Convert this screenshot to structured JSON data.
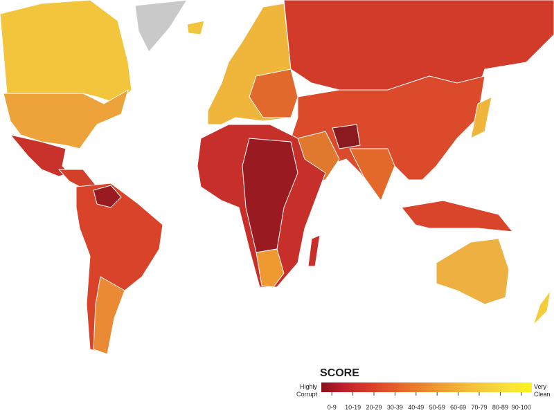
{
  "legend": {
    "title": "SCORE",
    "low_label": [
      "Highly",
      "Corrupt"
    ],
    "high_label": [
      "Very",
      "Clean"
    ],
    "ranges": [
      "0-9",
      "10-19",
      "20-29",
      "30-39",
      "40-49",
      "50-59",
      "60-69",
      "70-79",
      "80-89",
      "90-100"
    ],
    "colors": [
      "#8b0f1e",
      "#c1212b",
      "#d83a2a",
      "#e5592a",
      "#eb7a2c",
      "#ef9a31",
      "#f2b538",
      "#f5cd3c",
      "#f8e23a",
      "#fbf31c"
    ]
  }
}
